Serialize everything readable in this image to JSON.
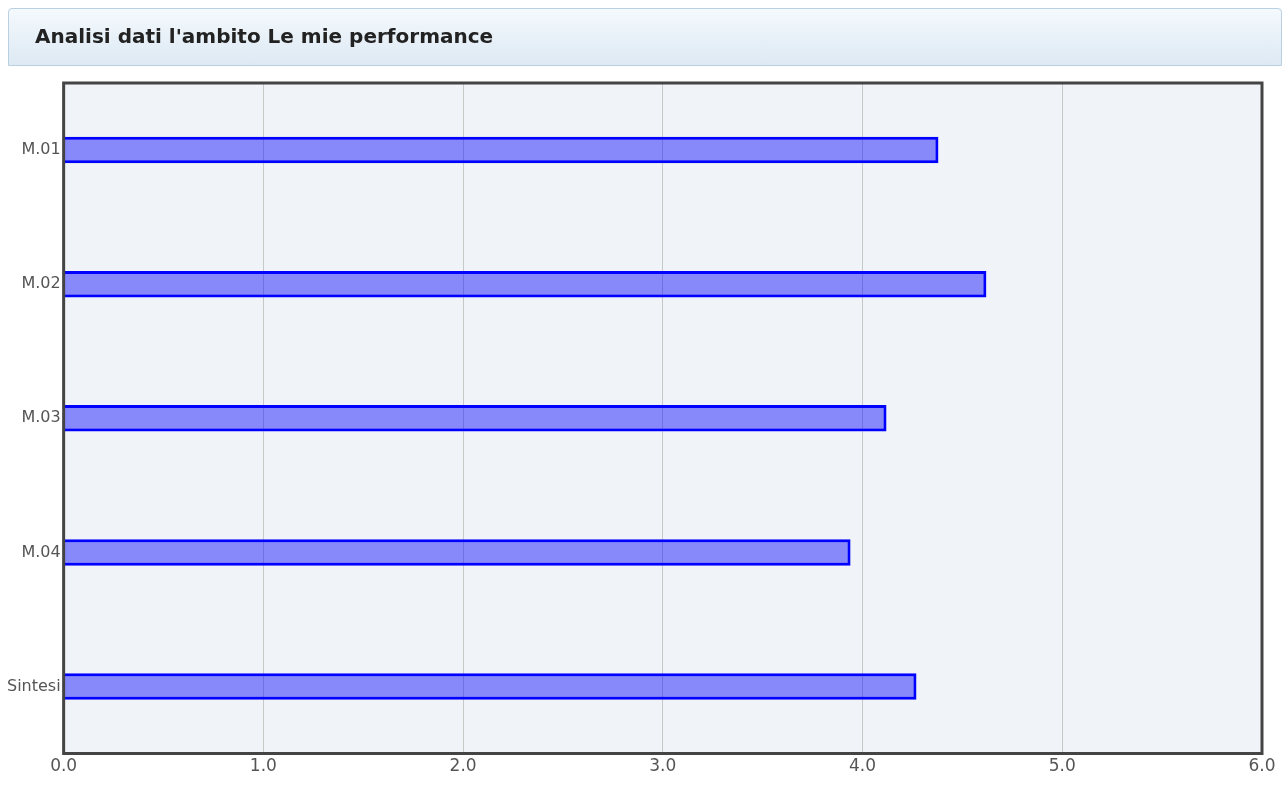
{
  "chart_data": {
    "type": "bar",
    "title": "Analisi dati l'ambito Le mie performance",
    "orientation": "horizontal",
    "categories": [
      "M.01",
      "M.02",
      "M.03",
      "M.04",
      "Sintesi"
    ],
    "values": [
      4.38,
      4.62,
      4.12,
      3.94,
      4.27
    ],
    "color": "#0000ff",
    "xlim": [
      0,
      6
    ],
    "xticks": [
      {
        "value": 0,
        "label": "0.0"
      },
      {
        "value": 1,
        "label": "1.0"
      },
      {
        "value": 2,
        "label": "2.0"
      },
      {
        "value": 3,
        "label": "3.0"
      },
      {
        "value": 4,
        "label": "4.0"
      },
      {
        "value": 5,
        "label": "5.0"
      },
      {
        "value": 6,
        "label": "6.0"
      }
    ],
    "grid": "x"
  }
}
